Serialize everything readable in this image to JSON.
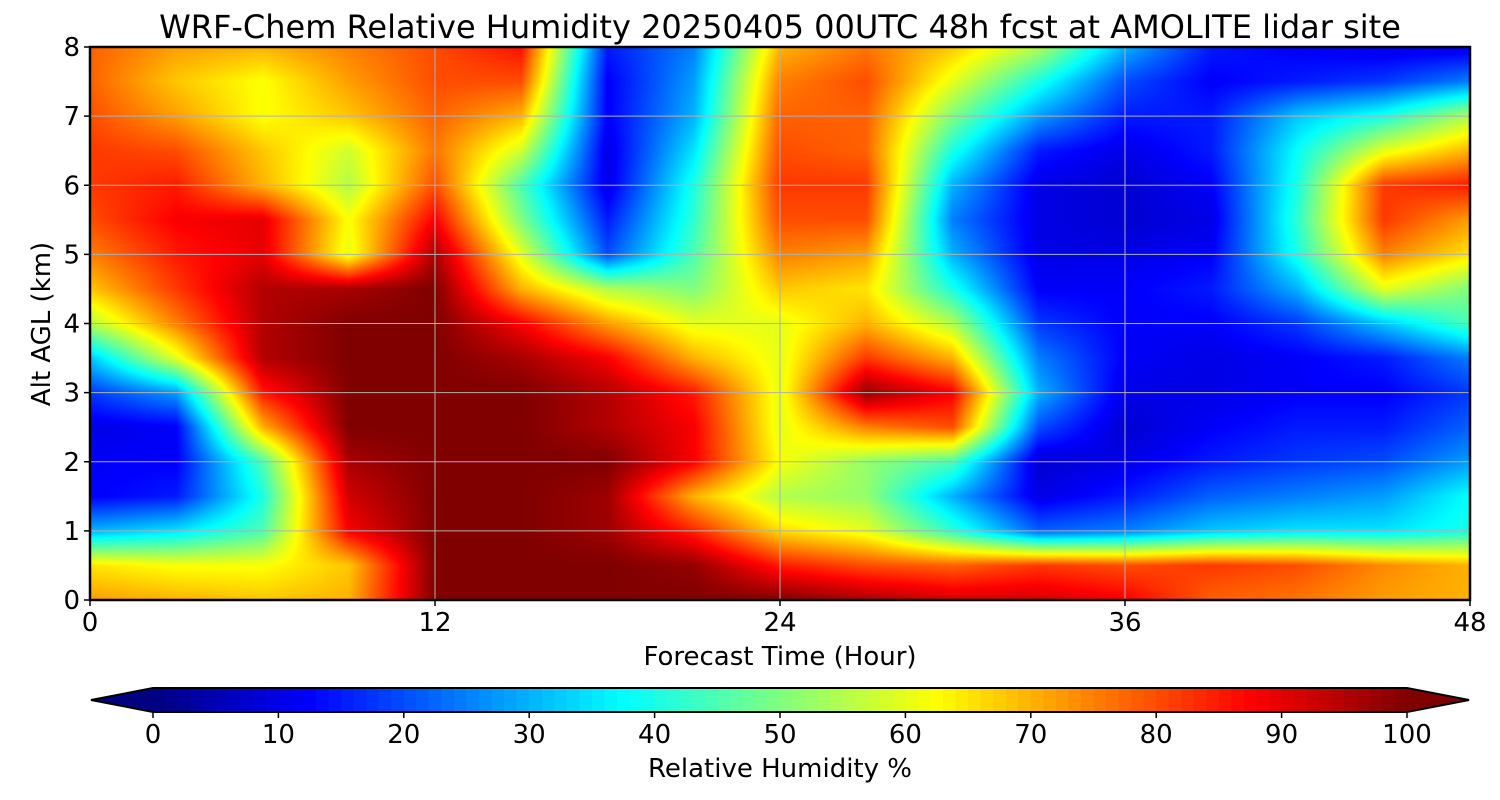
{
  "chart_data": {
    "type": "heatmap",
    "title": "WRF-Chem Relative Humidity 20250405 00UTC 48h fcst at AMOLITE lidar site",
    "xlabel": "Forecast Time (Hour)",
    "ylabel": "Alt AGL (km)",
    "xlim": [
      0,
      48
    ],
    "ylim": [
      0,
      8
    ],
    "x_ticks": [
      0,
      12,
      24,
      36,
      48
    ],
    "y_ticks": [
      0,
      1,
      2,
      3,
      4,
      5,
      6,
      7,
      8
    ],
    "grid": true,
    "colormap": "jet",
    "colorbar": {
      "label": "Relative Humidity %",
      "orientation": "horizontal",
      "extend": "both",
      "range": [
        0,
        100
      ],
      "ticks": [
        0,
        10,
        20,
        30,
        40,
        50,
        60,
        70,
        80,
        90,
        100
      ]
    },
    "x": [
      0,
      3,
      6,
      9,
      12,
      15,
      18,
      21,
      24,
      27,
      30,
      33,
      36,
      39,
      42,
      45,
      48
    ],
    "y": [
      0,
      0.5,
      1,
      1.5,
      2,
      2.5,
      3,
      3.5,
      4,
      4.5,
      5,
      5.5,
      6,
      6.5,
      7,
      7.5,
      8
    ],
    "z": [
      [
        72,
        70,
        68,
        70,
        100,
        100,
        100,
        100,
        100,
        96,
        92,
        92,
        88,
        78,
        76,
        72,
        70
      ],
      [
        65,
        62,
        62,
        68,
        100,
        100,
        100,
        98,
        85,
        80,
        78,
        82,
        80,
        82,
        80,
        74,
        70
      ],
      [
        30,
        35,
        45,
        88,
        100,
        100,
        97,
        84,
        66,
        60,
        42,
        22,
        25,
        32,
        35,
        35,
        40
      ],
      [
        12,
        15,
        40,
        92,
        100,
        100,
        97,
        70,
        55,
        52,
        30,
        10,
        15,
        22,
        25,
        28,
        38
      ],
      [
        12,
        12,
        45,
        96,
        100,
        100,
        100,
        88,
        62,
        52,
        45,
        8,
        10,
        15,
        18,
        20,
        28
      ],
      [
        10,
        12,
        70,
        100,
        100,
        100,
        95,
        88,
        60,
        75,
        80,
        20,
        8,
        12,
        15,
        15,
        22
      ],
      [
        18,
        28,
        85,
        100,
        100,
        100,
        95,
        85,
        60,
        98,
        88,
        30,
        10,
        10,
        12,
        12,
        18
      ],
      [
        32,
        60,
        95,
        100,
        100,
        96,
        88,
        70,
        60,
        82,
        70,
        25,
        12,
        10,
        12,
        15,
        25
      ],
      [
        55,
        75,
        95,
        100,
        100,
        88,
        72,
        60,
        60,
        70,
        55,
        18,
        12,
        12,
        18,
        32,
        45
      ],
      [
        68,
        82,
        95,
        96,
        100,
        70,
        55,
        50,
        68,
        65,
        40,
        12,
        12,
        15,
        30,
        60,
        50
      ],
      [
        75,
        85,
        90,
        60,
        96,
        60,
        20,
        45,
        75,
        72,
        30,
        10,
        10,
        12,
        40,
        75,
        65
      ],
      [
        80,
        88,
        90,
        62,
        88,
        50,
        15,
        42,
        80,
        80,
        25,
        10,
        8,
        10,
        42,
        82,
        72
      ],
      [
        82,
        85,
        70,
        55,
        80,
        45,
        10,
        40,
        82,
        82,
        30,
        10,
        8,
        12,
        40,
        82,
        85
      ],
      [
        82,
        80,
        68,
        58,
        76,
        58,
        10,
        35,
        80,
        78,
        40,
        15,
        10,
        15,
        38,
        60,
        70
      ],
      [
        80,
        72,
        62,
        68,
        78,
        70,
        12,
        30,
        78,
        78,
        50,
        28,
        15,
        15,
        32,
        40,
        55
      ],
      [
        78,
        68,
        62,
        72,
        80,
        80,
        12,
        28,
        75,
        80,
        60,
        40,
        20,
        12,
        15,
        18,
        25
      ],
      [
        78,
        72,
        70,
        75,
        80,
        86,
        15,
        25,
        70,
        76,
        68,
        55,
        30,
        15,
        12,
        10,
        10
      ]
    ]
  }
}
